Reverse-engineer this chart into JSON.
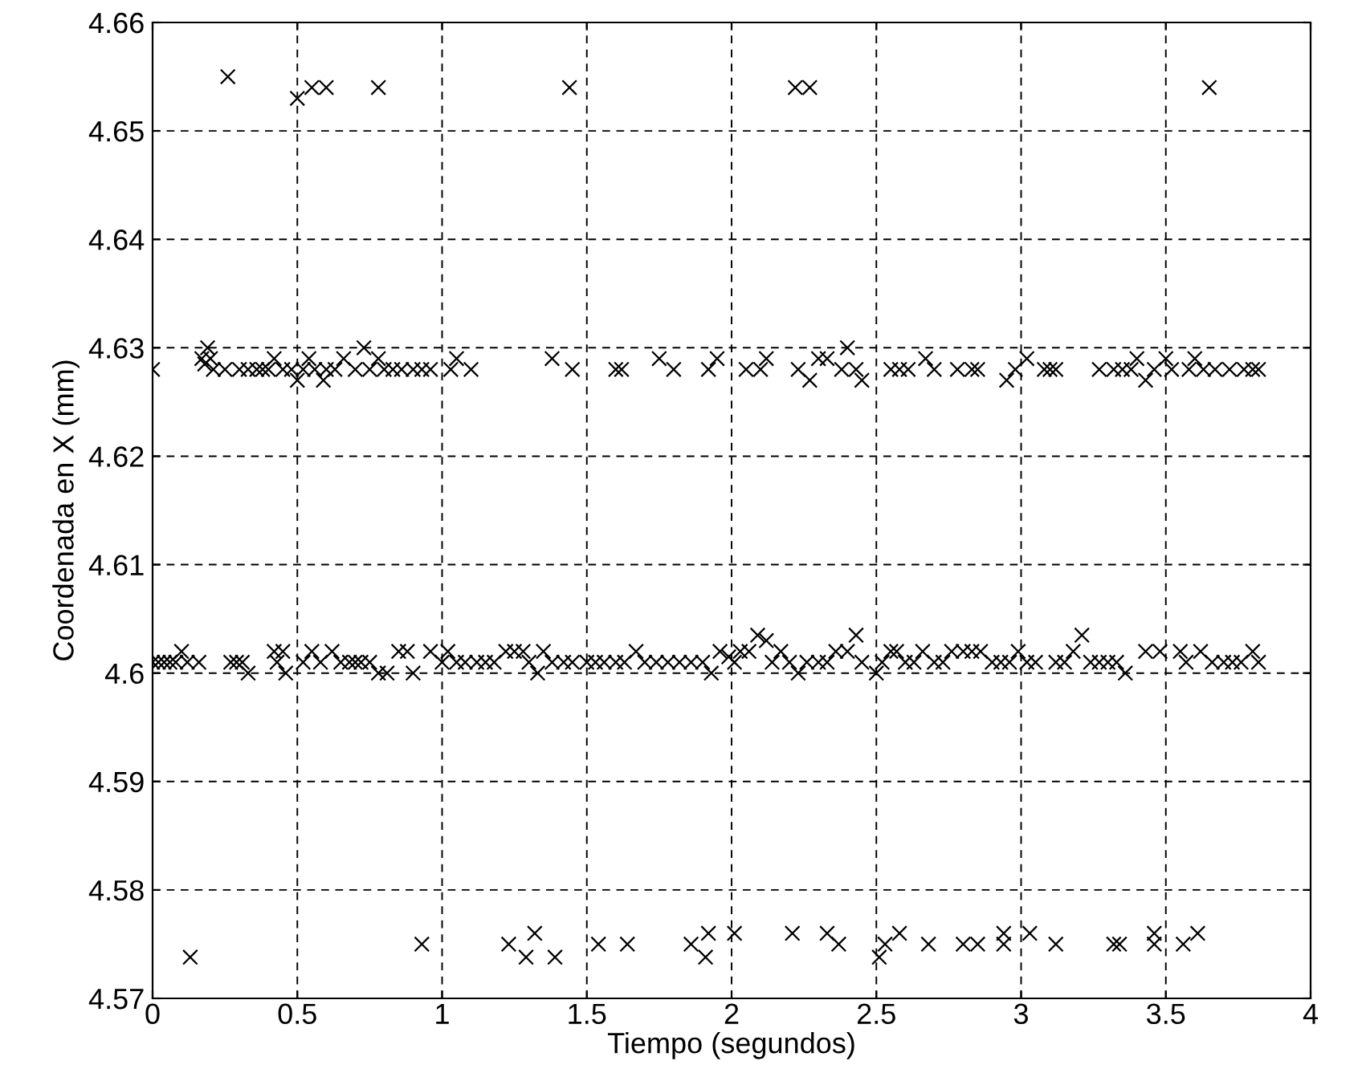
{
  "chart_data": {
    "type": "scatter",
    "xlabel": "Tiempo (segundos)",
    "ylabel": "Coordenada en X (mm)",
    "marker": "cross",
    "grid": true,
    "xlim": [
      0,
      4
    ],
    "xticks": [
      0,
      0.5,
      1,
      1.5,
      2,
      2.5,
      3,
      3.5,
      4
    ],
    "ylim": [
      4.57,
      4.66
    ],
    "yticks": [
      4.57,
      4.58,
      4.59,
      4.6,
      4.61,
      4.62,
      4.63,
      4.64,
      4.65,
      4.66
    ],
    "series": [
      {
        "color": "#000000",
        "x": [
          0.26,
          0.5,
          0.55,
          0.6,
          0.78,
          1.44,
          2.22,
          2.27,
          3.65
        ],
        "values": [
          4.655,
          4.653,
          4.654,
          4.654,
          4.654,
          4.654,
          4.654,
          4.654,
          4.654
        ]
      },
      {
        "color": "#000000",
        "x": [
          0.0,
          0.17,
          0.18,
          0.19,
          0.2,
          0.21,
          0.25,
          0.3,
          0.33,
          0.36,
          0.38,
          0.4,
          0.42,
          0.45,
          0.48,
          0.5,
          0.52,
          0.54,
          0.56,
          0.59,
          0.6,
          0.63,
          0.66,
          0.7,
          0.73,
          0.75,
          0.78,
          0.8,
          0.83,
          0.86,
          0.9,
          0.93,
          0.96,
          1.03,
          1.05,
          1.1,
          1.38,
          1.45,
          1.6,
          1.62,
          1.75,
          1.8,
          1.92,
          1.95,
          2.05,
          2.1,
          2.12,
          2.23,
          2.27,
          2.3,
          2.33,
          2.38,
          2.4,
          2.43,
          2.45,
          2.55,
          2.58,
          2.61,
          2.67,
          2.7,
          2.78,
          2.83,
          2.85,
          2.95,
          2.98,
          3.02,
          3.08,
          3.1,
          3.12,
          3.27,
          3.32,
          3.35,
          3.38,
          3.4,
          3.43,
          3.46,
          3.5,
          3.52,
          3.58,
          3.6,
          3.63,
          3.67,
          3.72,
          3.77,
          3.8,
          3.82
        ],
        "values": [
          4.628,
          4.629,
          4.6285,
          4.63,
          4.629,
          4.628,
          4.628,
          4.628,
          4.628,
          4.628,
          4.628,
          4.628,
          4.629,
          4.628,
          4.628,
          4.627,
          4.628,
          4.629,
          4.628,
          4.627,
          4.628,
          4.628,
          4.629,
          4.628,
          4.63,
          4.628,
          4.629,
          4.628,
          4.628,
          4.628,
          4.628,
          4.628,
          4.628,
          4.628,
          4.629,
          4.628,
          4.629,
          4.628,
          4.628,
          4.628,
          4.629,
          4.628,
          4.628,
          4.629,
          4.628,
          4.628,
          4.629,
          4.628,
          4.627,
          4.629,
          4.629,
          4.628,
          4.63,
          4.628,
          4.627,
          4.628,
          4.628,
          4.628,
          4.629,
          4.628,
          4.628,
          4.628,
          4.628,
          4.627,
          4.628,
          4.629,
          4.628,
          4.628,
          4.628,
          4.628,
          4.628,
          4.628,
          4.628,
          4.629,
          4.627,
          4.628,
          4.629,
          4.628,
          4.628,
          4.629,
          4.628,
          4.628,
          4.628,
          4.628,
          4.628,
          4.628
        ]
      },
      {
        "color": "#000000",
        "x": [
          0.0,
          0.02,
          0.04,
          0.06,
          0.08,
          0.1,
          0.12,
          0.16,
          0.27,
          0.29,
          0.31,
          0.33,
          0.42,
          0.43,
          0.45,
          0.46,
          0.52,
          0.55,
          0.58,
          0.62,
          0.65,
          0.68,
          0.7,
          0.72,
          0.75,
          0.78,
          0.81,
          0.85,
          0.88,
          0.9,
          0.96,
          1.0,
          1.02,
          1.05,
          1.08,
          1.12,
          1.15,
          1.18,
          1.22,
          1.25,
          1.28,
          1.3,
          1.33,
          1.35,
          1.38,
          1.42,
          1.45,
          1.5,
          1.53,
          1.56,
          1.6,
          1.63,
          1.67,
          1.7,
          1.74,
          1.78,
          1.82,
          1.86,
          1.9,
          1.93,
          1.96,
          1.99,
          2.01,
          2.03,
          2.06,
          2.09,
          2.12,
          2.14,
          2.17,
          2.2,
          2.23,
          2.26,
          2.3,
          2.33,
          2.36,
          2.4,
          2.43,
          2.45,
          2.5,
          2.52,
          2.55,
          2.57,
          2.6,
          2.63,
          2.66,
          2.7,
          2.73,
          2.76,
          2.8,
          2.83,
          2.86,
          2.9,
          2.93,
          2.96,
          2.99,
          3.02,
          3.05,
          3.12,
          3.15,
          3.18,
          3.21,
          3.24,
          3.27,
          3.3,
          3.33,
          3.36,
          3.43,
          3.48,
          3.55,
          3.57,
          3.62,
          3.66,
          3.7,
          3.73,
          3.76,
          3.8,
          3.82
        ],
        "values": [
          4.601,
          4.601,
          4.601,
          4.601,
          4.601,
          4.602,
          4.601,
          4.601,
          4.601,
          4.601,
          4.601,
          4.6,
          4.602,
          4.601,
          4.602,
          4.6,
          4.601,
          4.602,
          4.601,
          4.602,
          4.601,
          4.601,
          4.601,
          4.601,
          4.601,
          4.6,
          4.6,
          4.602,
          4.602,
          4.6,
          4.602,
          4.601,
          4.602,
          4.601,
          4.601,
          4.601,
          4.601,
          4.601,
          4.602,
          4.602,
          4.602,
          4.601,
          4.6,
          4.602,
          4.601,
          4.601,
          4.601,
          4.601,
          4.601,
          4.601,
          4.601,
          4.601,
          4.602,
          4.601,
          4.601,
          4.601,
          4.601,
          4.601,
          4.601,
          4.6,
          4.602,
          4.6015,
          4.601,
          4.602,
          4.602,
          4.6035,
          4.603,
          4.601,
          4.602,
          4.601,
          4.6,
          4.601,
          4.601,
          4.601,
          4.602,
          4.602,
          4.6035,
          4.601,
          4.6,
          4.601,
          4.602,
          4.602,
          4.601,
          4.601,
          4.602,
          4.601,
          4.601,
          4.602,
          4.602,
          4.602,
          4.602,
          4.601,
          4.601,
          4.601,
          4.602,
          4.601,
          4.601,
          4.601,
          4.601,
          4.602,
          4.6035,
          4.601,
          4.601,
          4.601,
          4.601,
          4.6,
          4.602,
          4.602,
          4.602,
          4.601,
          4.602,
          4.601,
          4.601,
          4.601,
          4.601,
          4.602,
          4.601
        ]
      },
      {
        "color": "#000000",
        "x": [
          0.13,
          0.93,
          1.23,
          1.29,
          1.32,
          1.39,
          1.54,
          1.64,
          1.86,
          1.91,
          1.92,
          2.01,
          2.21,
          2.33,
          2.37,
          2.51,
          2.53,
          2.58,
          2.68,
          2.8,
          2.85,
          2.94,
          2.94,
          3.03,
          3.12,
          3.32,
          3.34,
          3.46,
          3.46,
          3.56,
          3.61
        ],
        "values": [
          4.5738,
          4.575,
          4.575,
          4.5738,
          4.576,
          4.5738,
          4.575,
          4.575,
          4.575,
          4.5738,
          4.576,
          4.576,
          4.576,
          4.576,
          4.575,
          4.5738,
          4.575,
          4.576,
          4.575,
          4.575,
          4.575,
          4.575,
          4.576,
          4.576,
          4.575,
          4.575,
          4.575,
          4.576,
          4.575,
          4.575,
          4.576
        ]
      }
    ]
  }
}
